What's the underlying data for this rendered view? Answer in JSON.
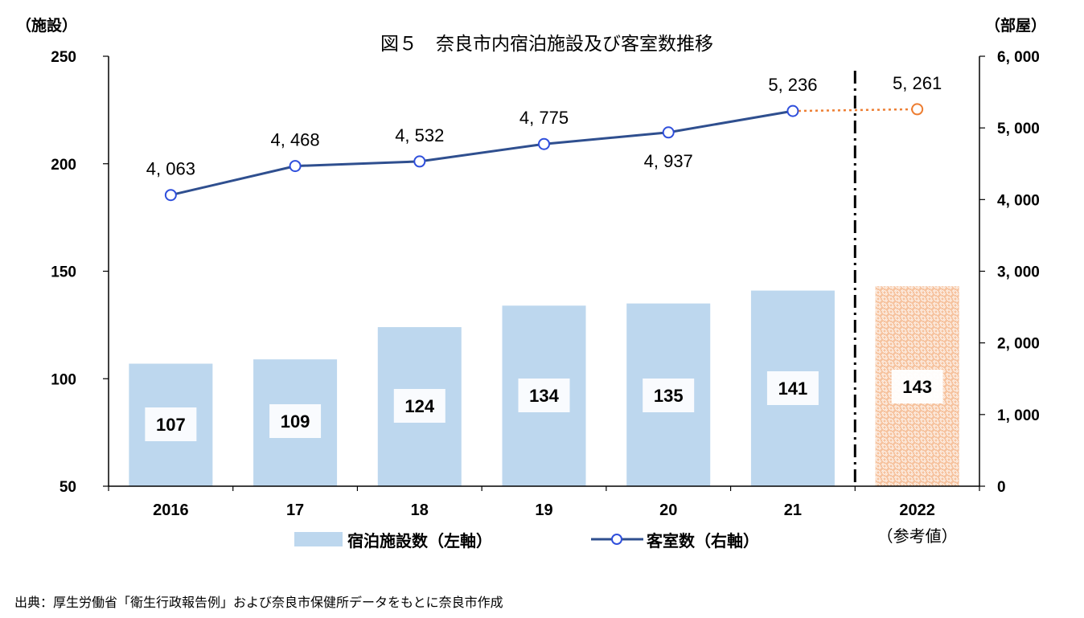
{
  "chart_data": {
    "type": "bar+line",
    "title": "図５　奈良市内宿泊施設及び客室数推移",
    "left_axis_unit": "（施設）",
    "right_axis_unit": "（部屋）",
    "categories": [
      "2016",
      "17",
      "18",
      "19",
      "20",
      "21",
      "2022"
    ],
    "category_note": "（参考値）",
    "left_ticks": [
      "250",
      "200",
      "150",
      "100",
      "50"
    ],
    "right_ticks": [
      "6, 000",
      "5, 000",
      "4, 000",
      "3, 000",
      "2, 000",
      "1, 000",
      "0"
    ],
    "left_ylim": [
      50,
      250
    ],
    "right_ylim": [
      0,
      6000
    ],
    "series": [
      {
        "name": "宿泊施設数（左軸）",
        "axis": "left",
        "type": "bar",
        "values": [
          107,
          109,
          124,
          134,
          135,
          141,
          143
        ],
        "labels": [
          "107",
          "109",
          "124",
          "134",
          "135",
          "141",
          "143"
        ],
        "color": "#bdd7ee",
        "reference_color": "#f4b183"
      },
      {
        "name": "客室数（右軸）",
        "axis": "right",
        "type": "line",
        "values": [
          4063,
          4468,
          4532,
          4775,
          4937,
          5236,
          5261
        ],
        "labels": [
          "4, 063",
          "4, 468",
          "4, 532",
          "4, 775",
          "4, 937",
          "5, 236",
          "5, 261"
        ],
        "color": "#2f4f8f",
        "reference_color": "#ed7d31"
      }
    ],
    "legend_placement": "bottom",
    "grid": false
  },
  "source_note": "出典：厚生労働省「衛生行政報告例」および奈良市保健所データをもとに奈良市作成"
}
